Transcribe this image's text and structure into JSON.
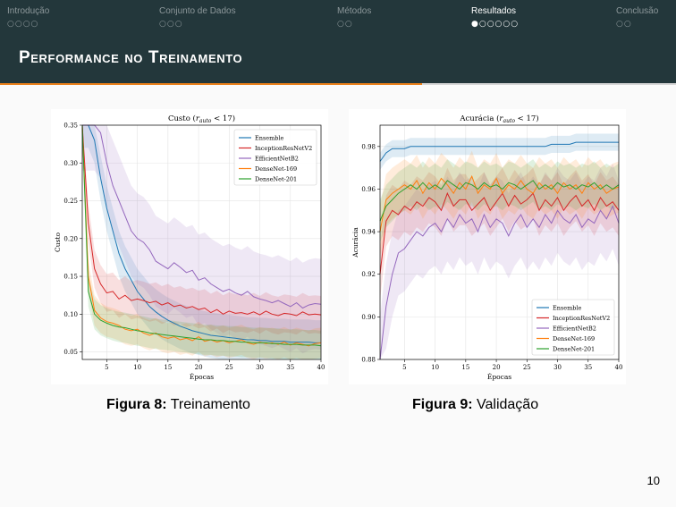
{
  "nav": {
    "sections": [
      {
        "label": "Introdução",
        "dots": "○○○○",
        "active": false
      },
      {
        "label": "Conjunto de Dados",
        "dots": "○○○",
        "active": false
      },
      {
        "label": "Métodos",
        "dots": "○○",
        "active": false
      },
      {
        "label": "Resultados",
        "dots": "●○○○○○",
        "active": true
      },
      {
        "label": "Conclusão",
        "dots": "○○",
        "active": false
      }
    ]
  },
  "slide": {
    "title": "Performance no Treinamento",
    "page_number": "10"
  },
  "colors": {
    "header_bg": "#23373b",
    "progress_accent": "#eb811b",
    "Ensemble": "#1f77b4",
    "InceptionResNetV2": "#d62728",
    "EfficientNetB2": "#9467bd",
    "DenseNet-169": "#ff7f0e",
    "DenseNet-201": "#2ca02c"
  },
  "figures": [
    {
      "caption_label": "Figura 8:",
      "caption_text": "Treinamento"
    },
    {
      "caption_label": "Figura 9:",
      "caption_text": "Validação"
    }
  ],
  "chart_data": [
    {
      "type": "line",
      "title": "Custo (r_auto < 17)",
      "xlabel": "Épocas",
      "ylabel": "Custo",
      "xlim": [
        1,
        40
      ],
      "ylim": [
        0.04,
        0.35
      ],
      "xticks": [
        5,
        10,
        15,
        20,
        25,
        30,
        35,
        40
      ],
      "yticks": [
        0.05,
        0.1,
        0.15,
        0.2,
        0.25,
        0.3,
        0.35
      ],
      "ytick_labels": [
        "0.05",
        "0.10",
        "0.15",
        "0.20",
        "0.25",
        "0.30",
        "0.35"
      ],
      "grid": true,
      "legend": "top-right",
      "x": [
        1,
        2,
        3,
        4,
        5,
        6,
        7,
        8,
        9,
        10,
        11,
        12,
        13,
        14,
        15,
        16,
        17,
        18,
        19,
        20,
        21,
        22,
        23,
        24,
        25,
        26,
        27,
        28,
        29,
        30,
        31,
        32,
        33,
        34,
        35,
        36,
        37,
        38,
        39,
        40
      ],
      "series": [
        {
          "name": "Ensemble",
          "values": [
            0.35,
            0.35,
            0.33,
            0.28,
            0.24,
            0.21,
            0.18,
            0.16,
            0.145,
            0.13,
            0.12,
            0.11,
            0.103,
            0.097,
            0.092,
            0.088,
            0.084,
            0.081,
            0.078,
            0.076,
            0.074,
            0.072,
            0.071,
            0.07,
            0.069,
            0.068,
            0.067,
            0.066,
            0.066,
            0.065,
            0.065,
            0.064,
            0.064,
            0.064,
            0.063,
            0.063,
            0.063,
            0.063,
            0.062,
            0.062
          ],
          "band": 0.03
        },
        {
          "name": "InceptionResNetV2",
          "values": [
            0.35,
            0.22,
            0.16,
            0.14,
            0.128,
            0.13,
            0.12,
            0.125,
            0.118,
            0.12,
            0.118,
            0.115,
            0.117,
            0.112,
            0.115,
            0.11,
            0.112,
            0.108,
            0.11,
            0.106,
            0.108,
            0.102,
            0.106,
            0.1,
            0.104,
            0.101,
            0.102,
            0.1,
            0.103,
            0.099,
            0.104,
            0.1,
            0.098,
            0.101,
            0.1,
            0.098,
            0.103,
            0.099,
            0.1,
            0.099
          ],
          "band": 0.025
        },
        {
          "name": "EfficientNetB2",
          "values": [
            0.35,
            0.35,
            0.35,
            0.34,
            0.3,
            0.27,
            0.25,
            0.23,
            0.21,
            0.2,
            0.195,
            0.185,
            0.17,
            0.165,
            0.16,
            0.168,
            0.162,
            0.155,
            0.158,
            0.145,
            0.148,
            0.14,
            0.135,
            0.13,
            0.133,
            0.128,
            0.125,
            0.13,
            0.123,
            0.12,
            0.118,
            0.115,
            0.118,
            0.114,
            0.11,
            0.115,
            0.108,
            0.112,
            0.114,
            0.113
          ],
          "band": 0.06
        },
        {
          "name": "DenseNet-169",
          "values": [
            0.35,
            0.15,
            0.105,
            0.095,
            0.09,
            0.088,
            0.085,
            0.08,
            0.078,
            0.08,
            0.075,
            0.072,
            0.075,
            0.07,
            0.068,
            0.07,
            0.066,
            0.068,
            0.065,
            0.07,
            0.064,
            0.066,
            0.063,
            0.065,
            0.062,
            0.064,
            0.066,
            0.062,
            0.06,
            0.063,
            0.061,
            0.062,
            0.06,
            0.063,
            0.059,
            0.062,
            0.06,
            0.058,
            0.061,
            0.062
          ],
          "band": 0.02
        },
        {
          "name": "DenseNet-201",
          "values": [
            0.35,
            0.13,
            0.1,
            0.092,
            0.088,
            0.085,
            0.083,
            0.082,
            0.08,
            0.078,
            0.077,
            0.075,
            0.074,
            0.073,
            0.072,
            0.071,
            0.07,
            0.069,
            0.068,
            0.067,
            0.066,
            0.066,
            0.065,
            0.065,
            0.064,
            0.064,
            0.063,
            0.063,
            0.062,
            0.062,
            0.062,
            0.061,
            0.061,
            0.06,
            0.06,
            0.06,
            0.059,
            0.059,
            0.059,
            0.058
          ],
          "band": 0.02
        }
      ]
    },
    {
      "type": "line",
      "title": "Acurácia (r_auto < 17)",
      "xlabel": "Épocas",
      "ylabel": "Acurácia",
      "xlim": [
        1,
        40
      ],
      "ylim": [
        0.88,
        0.99
      ],
      "xticks": [
        5,
        10,
        15,
        20,
        25,
        30,
        35,
        40
      ],
      "yticks": [
        0.88,
        0.9,
        0.92,
        0.94,
        0.96,
        0.98
      ],
      "ytick_labels": [
        "0.88",
        "0.90",
        "0.92",
        "0.94",
        "0.96",
        "0.98"
      ],
      "grid": true,
      "legend": "bottom-right",
      "x": [
        1,
        2,
        3,
        4,
        5,
        6,
        7,
        8,
        9,
        10,
        11,
        12,
        13,
        14,
        15,
        16,
        17,
        18,
        19,
        20,
        21,
        22,
        23,
        24,
        25,
        26,
        27,
        28,
        29,
        30,
        31,
        32,
        33,
        34,
        35,
        36,
        37,
        38,
        39,
        40
      ],
      "series": [
        {
          "name": "Ensemble",
          "values": [
            0.973,
            0.977,
            0.979,
            0.979,
            0.979,
            0.98,
            0.98,
            0.98,
            0.98,
            0.98,
            0.98,
            0.98,
            0.98,
            0.98,
            0.98,
            0.98,
            0.98,
            0.98,
            0.98,
            0.98,
            0.98,
            0.98,
            0.98,
            0.98,
            0.98,
            0.98,
            0.98,
            0.98,
            0.981,
            0.981,
            0.981,
            0.981,
            0.982,
            0.982,
            0.982,
            0.982,
            0.982,
            0.982,
            0.982,
            0.982
          ],
          "band": 0.004
        },
        {
          "name": "InceptionResNetV2",
          "values": [
            0.92,
            0.945,
            0.95,
            0.948,
            0.952,
            0.95,
            0.954,
            0.952,
            0.956,
            0.954,
            0.95,
            0.958,
            0.952,
            0.955,
            0.955,
            0.95,
            0.953,
            0.956,
            0.95,
            0.954,
            0.958,
            0.952,
            0.957,
            0.953,
            0.955,
            0.958,
            0.95,
            0.955,
            0.952,
            0.956,
            0.95,
            0.954,
            0.957,
            0.952,
            0.955,
            0.95,
            0.956,
            0.952,
            0.954,
            0.95
          ],
          "band": 0.012
        },
        {
          "name": "EfficientNetB2",
          "values": [
            0.88,
            0.905,
            0.92,
            0.93,
            0.932,
            0.936,
            0.94,
            0.938,
            0.942,
            0.944,
            0.94,
            0.946,
            0.942,
            0.948,
            0.944,
            0.946,
            0.94,
            0.948,
            0.942,
            0.946,
            0.944,
            0.938,
            0.944,
            0.948,
            0.942,
            0.946,
            0.942,
            0.948,
            0.944,
            0.95,
            0.946,
            0.944,
            0.948,
            0.942,
            0.946,
            0.944,
            0.95,
            0.946,
            0.952,
            0.944
          ],
          "band": 0.02
        },
        {
          "name": "DenseNet-169",
          "values": [
            0.94,
            0.955,
            0.958,
            0.96,
            0.962,
            0.96,
            0.964,
            0.958,
            0.963,
            0.96,
            0.965,
            0.962,
            0.958,
            0.963,
            0.96,
            0.966,
            0.958,
            0.962,
            0.96,
            0.965,
            0.958,
            0.962,
            0.96,
            0.964,
            0.96,
            0.958,
            0.963,
            0.96,
            0.962,
            0.958,
            0.963,
            0.96,
            0.962,
            0.958,
            0.963,
            0.96,
            0.962,
            0.958,
            0.96,
            0.961
          ],
          "band": 0.012
        },
        {
          "name": "DenseNet-201",
          "values": [
            0.945,
            0.952,
            0.955,
            0.958,
            0.96,
            0.962,
            0.96,
            0.963,
            0.96,
            0.962,
            0.96,
            0.964,
            0.962,
            0.96,
            0.963,
            0.962,
            0.96,
            0.963,
            0.961,
            0.962,
            0.96,
            0.963,
            0.962,
            0.96,
            0.962,
            0.964,
            0.96,
            0.962,
            0.96,
            0.963,
            0.961,
            0.962,
            0.96,
            0.962,
            0.961,
            0.963,
            0.96,
            0.962,
            0.96,
            0.962
          ],
          "band": 0.01
        }
      ]
    }
  ]
}
